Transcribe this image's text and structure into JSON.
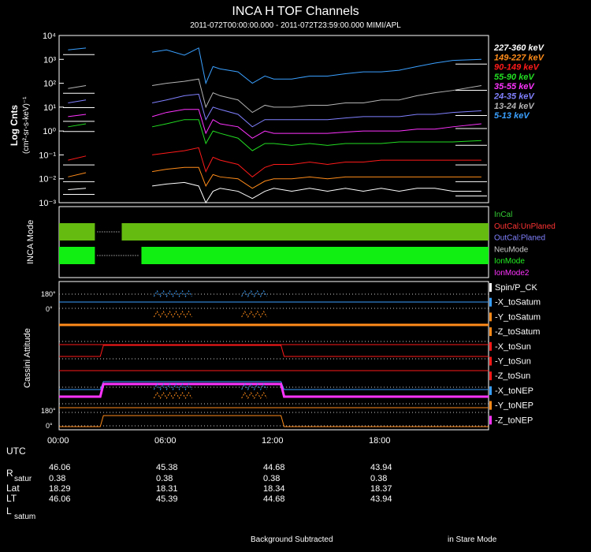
{
  "header": {
    "title": "INCA H TOF Channels",
    "subtitle": "2011-072T00:00:00.000 - 2011-072T23:59:00.000 MIMI/APL"
  },
  "colors": {
    "white": "#ffffff",
    "orange": "#ff8c1a",
    "red": "#ff1a1a",
    "green": "#22dd22",
    "magenta": "#ff33ff",
    "blue": "#8080ff",
    "gray": "#b4b4b4",
    "cyan": "#3aa0ff",
    "mode_dark": "#66bb11",
    "mode_bright": "#11ee11"
  },
  "chart_data": [
    {
      "type": "line",
      "name": "tof_flux",
      "ylabel": "Log Cnts",
      "ylabel_units": "(cm²-sr-s-keV)⁻¹",
      "yscale": "log",
      "ylim": [
        0.001,
        10000
      ],
      "yticks": [
        "10⁻³",
        "10⁻²",
        "10⁻¹",
        "10⁰",
        "10¹",
        "10²",
        "10³",
        "10⁴"
      ],
      "xlim_hours": [
        0,
        24
      ],
      "series": [
        {
          "name": "227-360 keV",
          "color": "#ffffff",
          "x": [
            0.5,
            1.5,
            5.2,
            6,
            7,
            7.8,
            8.2,
            8.6,
            9,
            10,
            10.8,
            11.5,
            12,
            13,
            14,
            15,
            16,
            17,
            18,
            19,
            20,
            21,
            22,
            23.6
          ],
          "y": [
            0.0035,
            0.004,
            0.005,
            0.006,
            0.007,
            0.005,
            0.001,
            0.003,
            0.004,
            0.003,
            0.0015,
            0.003,
            0.004,
            0.003,
            0.004,
            0.003,
            0.004,
            0.003,
            0.004,
            0.003,
            0.004,
            0.004,
            0.003,
            0.003
          ]
        },
        {
          "name": "149-227 keV",
          "color": "#ff8c1a",
          "x": [
            0.5,
            1.5,
            5.2,
            6,
            7,
            7.8,
            8.2,
            8.6,
            9,
            10,
            10.8,
            11.5,
            12,
            13,
            14,
            15,
            16,
            17,
            18,
            19,
            20,
            21,
            22,
            23.6
          ],
          "y": [
            0.012,
            0.018,
            0.02,
            0.025,
            0.03,
            0.03,
            0.005,
            0.015,
            0.012,
            0.01,
            0.004,
            0.008,
            0.01,
            0.01,
            0.012,
            0.01,
            0.012,
            0.012,
            0.012,
            0.012,
            0.012,
            0.012,
            0.012,
            0.012
          ]
        },
        {
          "name": "90-149 keV",
          "color": "#ff1a1a",
          "x": [
            0.5,
            1.5,
            5.2,
            6,
            7,
            7.8,
            8.2,
            8.6,
            9,
            10,
            10.8,
            11.5,
            12,
            13,
            14,
            15,
            16,
            17,
            18,
            19,
            20,
            21,
            22,
            23.6
          ],
          "y": [
            0.06,
            0.09,
            0.1,
            0.12,
            0.15,
            0.2,
            0.02,
            0.08,
            0.06,
            0.04,
            0.012,
            0.03,
            0.04,
            0.04,
            0.05,
            0.04,
            0.05,
            0.05,
            0.06,
            0.06,
            0.06,
            0.06,
            0.06,
            0.06
          ]
        },
        {
          "name": "55-90 keV",
          "color": "#22dd22",
          "x": [
            0.5,
            1.5,
            5.2,
            6,
            7,
            7.8,
            8.2,
            8.6,
            9,
            10,
            10.8,
            11.5,
            12,
            13,
            14,
            15,
            16,
            17,
            18,
            19,
            20,
            21,
            22,
            23.6
          ],
          "y": [
            1.5,
            2,
            1.5,
            2,
            3,
            3,
            0.3,
            1,
            0.8,
            0.5,
            0.15,
            0.3,
            0.3,
            0.25,
            0.3,
            0.25,
            0.3,
            0.3,
            0.3,
            0.35,
            0.35,
            0.35,
            0.35,
            0.4
          ]
        },
        {
          "name": "35-55 keV",
          "color": "#ff33ff",
          "x": [
            0.5,
            1.5,
            5.2,
            6,
            7,
            7.8,
            8.2,
            8.6,
            9,
            10,
            10.8,
            11.5,
            12,
            13,
            14,
            15,
            16,
            17,
            18,
            19,
            20,
            21,
            22,
            23.6
          ],
          "y": [
            4,
            5,
            4,
            6,
            8,
            8,
            0.8,
            3,
            2,
            1.5,
            0.5,
            1,
            0.8,
            0.8,
            0.8,
            0.8,
            0.9,
            1,
            1,
            1,
            1.2,
            1.2,
            1.5,
            2
          ]
        },
        {
          "name": "24-35 keV",
          "color": "#8080ff",
          "x": [
            0.5,
            1.5,
            5.2,
            6,
            7,
            7.8,
            8.2,
            8.6,
            9,
            10,
            10.8,
            11.5,
            12,
            13,
            14,
            15,
            16,
            17,
            18,
            19,
            20,
            21,
            22,
            23.6
          ],
          "y": [
            15,
            20,
            15,
            20,
            30,
            35,
            3,
            10,
            8,
            5,
            1.5,
            3,
            3,
            3,
            3,
            3,
            3.5,
            4,
            4,
            4,
            5,
            5,
            6,
            7
          ]
        },
        {
          "name": "13-24 keV",
          "color": "#b4b4b4",
          "x": [
            0.5,
            1.5,
            5.2,
            6,
            7,
            7.8,
            8.2,
            8.6,
            9,
            10,
            10.8,
            11.5,
            12,
            13,
            14,
            15,
            16,
            17,
            18,
            19,
            20,
            21,
            22,
            23.6
          ],
          "y": [
            60,
            80,
            80,
            100,
            120,
            150,
            10,
            40,
            30,
            20,
            6,
            12,
            10,
            10,
            12,
            12,
            15,
            15,
            20,
            20,
            30,
            40,
            50,
            80
          ]
        },
        {
          "name": "5-13 keV",
          "color": "#3aa0ff",
          "x": [
            0.5,
            1.5,
            5.2,
            6,
            7,
            7.8,
            8.2,
            8.6,
            9,
            10,
            10.8,
            11.5,
            12,
            13,
            14,
            15,
            16,
            17,
            18,
            19,
            20,
            21,
            22,
            23.6
          ],
          "y": [
            2500,
            3000,
            2000,
            2500,
            1500,
            3000,
            100,
            500,
            400,
            300,
            100,
            200,
            150,
            150,
            200,
            200,
            250,
            300,
            300,
            350,
            500,
            700,
            900,
            1000
          ]
        }
      ]
    },
    {
      "type": "bar",
      "name": "inca_mode",
      "ylabel": "INCA Mode",
      "legend": [
        {
          "label": "InCal",
          "color": "#33cc33"
        },
        {
          "label": "OutCal:UnPlaned",
          "color": "#ff3333"
        },
        {
          "label": "OutCal:Planed",
          "color": "#8080ff"
        },
        {
          "label": "NeuMode",
          "color": "#cccccc"
        },
        {
          "label": "IonMode",
          "color": "#22ee22"
        },
        {
          "label": "IonMode2",
          "color": "#ff33ff"
        }
      ],
      "rows": [
        {
          "color": "#66bb11",
          "intervals": [
            [
              0,
              2.0
            ],
            [
              3.5,
              24
            ]
          ]
        },
        {
          "color": "#11ee11",
          "intervals": [
            [
              0,
              2.0
            ],
            [
              4.6,
              24
            ]
          ]
        }
      ]
    },
    {
      "type": "line",
      "name": "cassini_attitude",
      "ylabel": "Cassini Attitude",
      "tick_top": "180°",
      "tick_mid": "0°",
      "tick_bottom_a": "180°",
      "tick_bottom_b": "0°",
      "legend": [
        {
          "label": "Spin/P_CK",
          "color": "#ffffff"
        },
        {
          "label": "-X_toSatum",
          "color": "#3aa0ff"
        },
        {
          "label": "-Y_toSatum",
          "color": "#ff8c1a"
        },
        {
          "label": "-Z_toSatum",
          "color": "#ff8c1a"
        },
        {
          "label": "-X_toSun",
          "color": "#ff1a1a"
        },
        {
          "label": "-Y_toSun",
          "color": "#ff1a1a"
        },
        {
          "label": "-Z_toSun",
          "color": "#ff1a1a"
        },
        {
          "label": "-X_toNEP",
          "color": "#3aa0ff"
        },
        {
          "label": "-Y_toNEP",
          "color": "#ff8c1a"
        },
        {
          "label": "-Z_toNEP",
          "color": "#ff33ff"
        }
      ]
    }
  ],
  "time_axis": {
    "ticks": [
      "00:00",
      "06:00",
      "12:00",
      "18:00"
    ],
    "utc_label": "UTC"
  },
  "ephemeris": {
    "rows": [
      {
        "label": "R",
        "sub": "satur",
        "values": [
          "46.06",
          "45.38",
          "44.68",
          "43.94"
        ]
      },
      {
        "label": "",
        "sub": "",
        "values": [
          "0.38",
          "0.38",
          "0.38",
          "0.38"
        ]
      },
      {
        "label": "Lat",
        "sub": "",
        "values": [
          "18.29",
          "18.31",
          "18.34",
          "18.37"
        ]
      },
      {
        "label": "LT",
        "sub": "",
        "values": [
          "46.06",
          "45.39",
          "44.68",
          "43.94"
        ]
      },
      {
        "label": "L",
        "sub": "satum",
        "values": [
          "",
          "",
          "",
          ""
        ]
      }
    ]
  },
  "footer": {
    "left": "Background Subtracted",
    "right": "in Stare Mode"
  }
}
